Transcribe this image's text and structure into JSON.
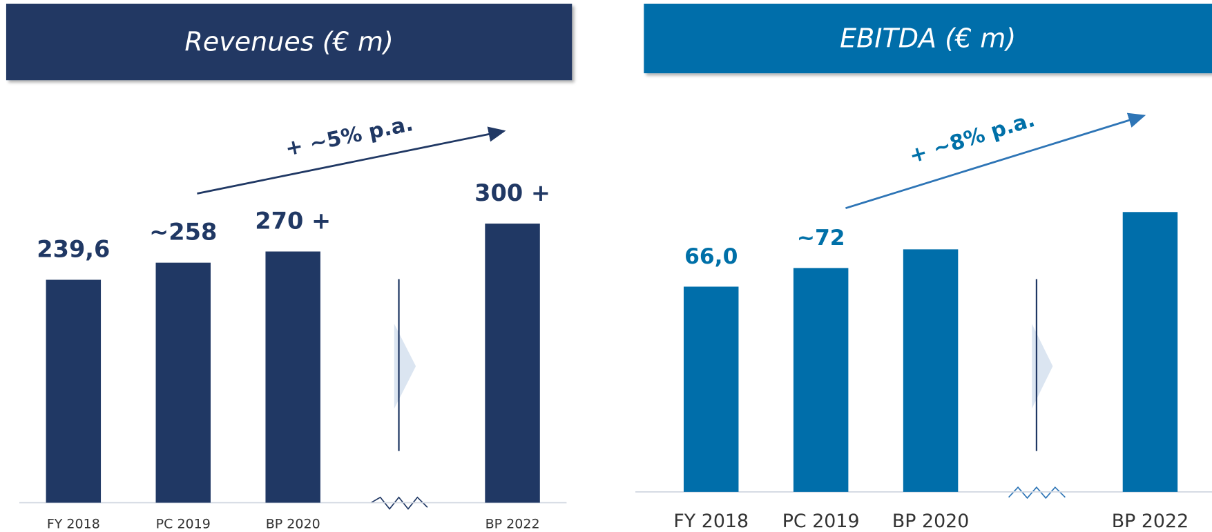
{
  "chart_data": [
    {
      "type": "bar",
      "title": "Revenues (€ m)",
      "annotation": "+ ~5% p.a.",
      "categories": [
        "FY 2018",
        "PC 2019",
        "BP 2020",
        null,
        "BP 2022"
      ],
      "values": [
        239.6,
        258,
        270,
        null,
        300
      ],
      "value_labels": [
        "239,6",
        "~258",
        "270 +",
        null,
        "300 +"
      ],
      "color": "#203864"
    },
    {
      "type": "bar",
      "title": "EBITDA (€ m)",
      "annotation": "+ ~8% p.a.",
      "categories": [
        "FY 2018",
        "PC 2019",
        "BP 2020",
        null,
        "BP 2022"
      ],
      "values": [
        66,
        72,
        78,
        null,
        90
      ],
      "value_labels": [
        "66,0",
        "~72",
        null,
        null,
        null
      ],
      "color": "#006eaa"
    }
  ]
}
